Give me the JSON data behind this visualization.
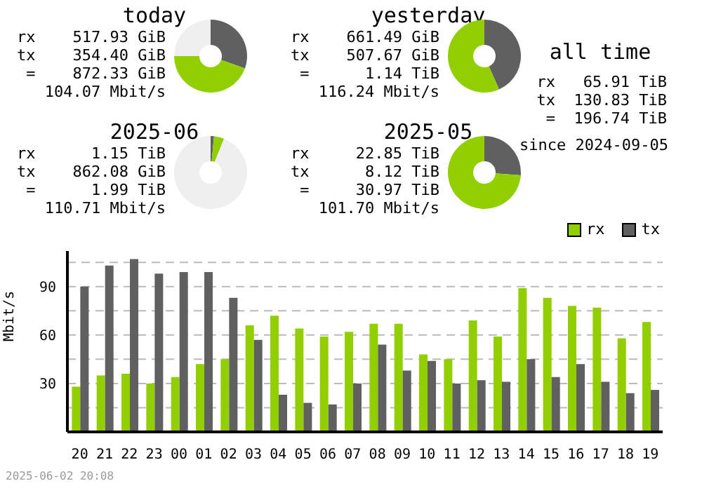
{
  "chart_data": [
    {
      "type": "donut",
      "title": "today",
      "categories": [
        null,
        null,
        null
      ],
      "values": [
        30.5,
        44.5,
        25
      ],
      "colors": [
        "#606060",
        "#92cf00",
        "#efefef"
      ],
      "annotations": [
        "rx    517.93 GiB",
        "tx    354.40 GiB",
        " =    872.33 GiB",
        "104.07 Mbit/s"
      ]
    },
    {
      "type": "donut",
      "title": "yesterday",
      "categories": [
        null,
        null,
        null
      ],
      "values": [
        43.4,
        56.6,
        0
      ],
      "colors": [
        "#606060",
        "#92cf00",
        "#efefef"
      ],
      "annotations": [
        "rx    661.49 GiB",
        "tx    507.67 GiB",
        " =      1.14 TiB",
        "116.24 Mbit/s"
      ]
    },
    {
      "type": "donut",
      "title": "2025-06",
      "categories": [
        null,
        null,
        null
      ],
      "values": [
        1.5,
        4.5,
        94
      ],
      "colors": [
        "#606060",
        "#92cf00",
        "#efefef"
      ],
      "annotations": [
        "rx      1.15 TiB",
        "tx    862.08 GiB",
        " =      1.99 TiB",
        "110.71 Mbit/s"
      ]
    },
    {
      "type": "donut",
      "title": "2025-05",
      "categories": [
        null,
        null,
        null
      ],
      "values": [
        26.2,
        73.8,
        0
      ],
      "colors": [
        "#606060",
        "#92cf00",
        "#efefef"
      ],
      "annotations": [
        "rx     22.85 TiB",
        "tx      8.12 TiB",
        " =     30.97 TiB",
        "101.70 Mbit/s"
      ]
    },
    {
      "type": "other",
      "title": "all time",
      "annotations": [
        "rx   65.91 TiB",
        "tx  130.83 TiB",
        " =  196.74 TiB",
        "since 2024-09-05"
      ]
    },
    {
      "type": "bar",
      "ylabel": "Mbit/s",
      "categories": [
        "20",
        "21",
        "22",
        "23",
        "00",
        "01",
        "02",
        "03",
        "04",
        "05",
        "06",
        "07",
        "08",
        "09",
        "10",
        "11",
        "12",
        "13",
        "14",
        "15",
        "16",
        "17",
        "18",
        "19"
      ],
      "series": [
        {
          "name": "rx",
          "color": "#92cf00",
          "values": [
            28,
            35,
            36,
            30,
            34,
            42,
            45,
            66,
            72,
            64,
            59,
            62,
            67,
            67,
            48,
            45,
            69,
            59,
            89,
            83,
            78,
            77,
            58,
            68
          ]
        },
        {
          "name": "tx",
          "color": "#606060",
          "values": [
            90,
            103,
            107,
            98,
            99,
            99,
            83,
            57,
            23,
            18,
            17,
            30,
            54,
            38,
            44,
            30,
            32,
            31,
            45,
            34,
            42,
            31,
            24,
            26
          ]
        }
      ],
      "ylim": [
        0,
        112
      ],
      "yticks": [
        {
          "value": 15,
          "label": null
        },
        30,
        {
          "value": 45,
          "label": null
        },
        60,
        {
          "value": 75,
          "label": null
        },
        90,
        {
          "value": 105,
          "label": null
        }
      ],
      "grid": "y",
      "legend": "top right",
      "annotations": [
        "2025-06-02 20:08"
      ]
    }
  ]
}
